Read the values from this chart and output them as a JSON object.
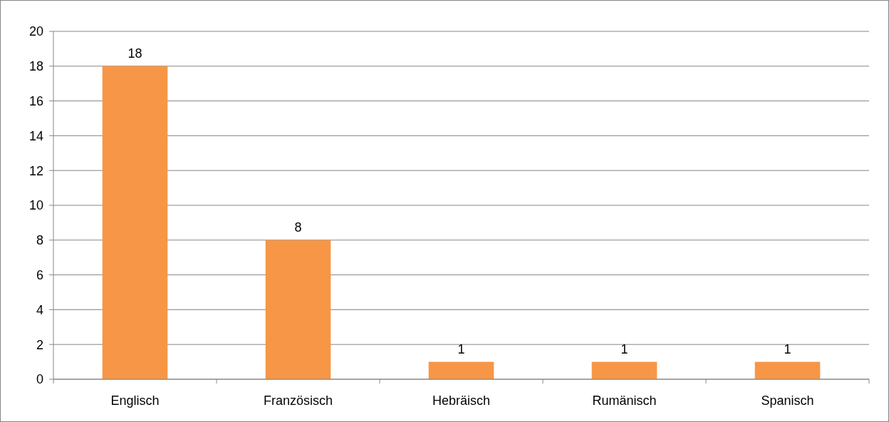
{
  "chart_data": {
    "type": "bar",
    "categories": [
      "Englisch",
      "Französisch",
      "Hebräisch",
      "Rumänisch",
      "Spanisch"
    ],
    "values": [
      18,
      8,
      1,
      1,
      1
    ],
    "color": "#f79646",
    "ylim": [
      0,
      20
    ],
    "yticks": [
      0,
      2,
      4,
      6,
      8,
      10,
      12,
      14,
      16,
      18,
      20
    ],
    "grid": "y",
    "data_labels": true
  }
}
